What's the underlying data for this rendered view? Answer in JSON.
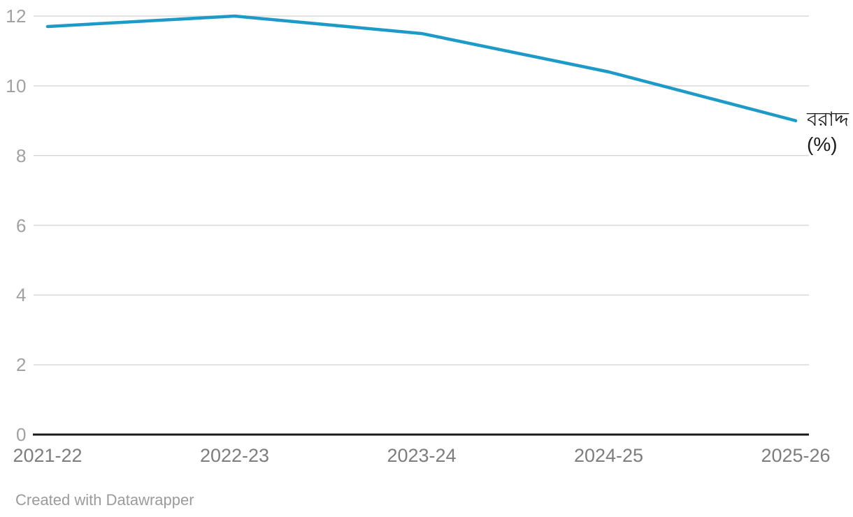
{
  "footer": {
    "credit": "Created with Datawrapper"
  },
  "line_label": {
    "line1": "বরাদ্দ",
    "line2": "(%)"
  },
  "colors": {
    "line": "#1e9ac9",
    "grid": "#d9d9d9",
    "baseline": "#1a1a1a",
    "y_tick_text": "#a1a1a1",
    "x_tick_text": "#7d7d7d",
    "label_text": "#1a1a1a",
    "credit_text": "#9b9b9b",
    "background": "#ffffff"
  },
  "chart_data": {
    "type": "line",
    "categories": [
      "2021-22",
      "2022-23",
      "2023-24",
      "2024-25",
      "2025-26"
    ],
    "series": [
      {
        "name": "বরাদ্দ (%)",
        "values": [
          11.7,
          12,
          11.5,
          10.4,
          9
        ]
      }
    ],
    "yticks": [
      12,
      10,
      8,
      6,
      4,
      2,
      0
    ],
    "ylim": [
      0,
      12
    ],
    "xlabel": "",
    "ylabel": "",
    "title": "",
    "grid": true,
    "legend_position": "end-of-line"
  }
}
